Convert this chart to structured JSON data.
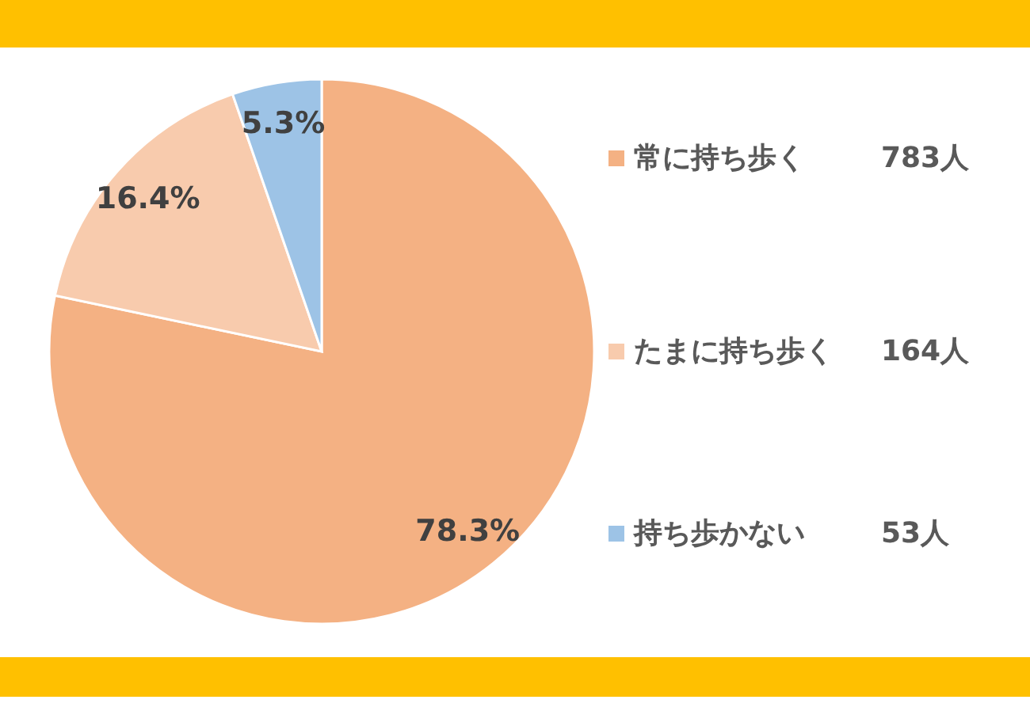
{
  "chart_data": {
    "type": "pie",
    "categories": [
      "常に持ち歩く",
      "たまに持ち歩く",
      "持ち歩かない"
    ],
    "values": [
      78.3,
      16.4,
      5.3
    ],
    "colors": [
      "#f4b183",
      "#f8cbad",
      "#9dc3e6"
    ],
    "value_labels": [
      "78.3%",
      "16.4%",
      "5.3%"
    ],
    "annotations": [
      "783人",
      "164人",
      "53人"
    ],
    "legend": "right"
  }
}
